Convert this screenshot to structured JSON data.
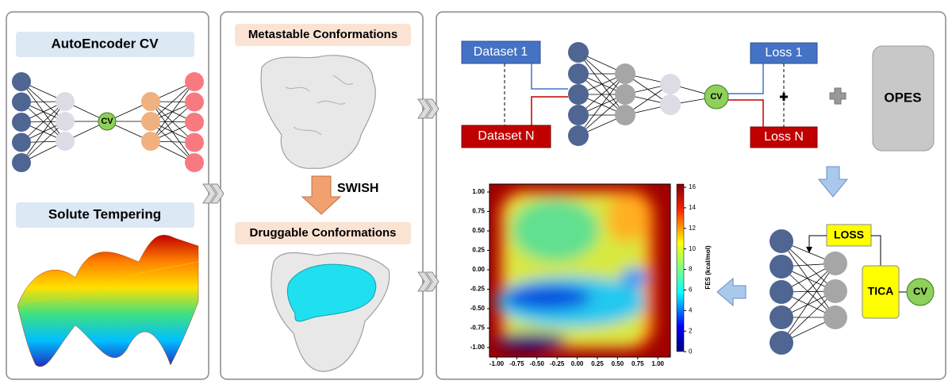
{
  "left": {
    "autoencoder": "AutoEncoder CV",
    "cv": "CV",
    "solute": "Solute Tempering"
  },
  "middle": {
    "metastable": "Metastable Conformations",
    "swish": "SWISH",
    "druggable": "Druggable Conformations"
  },
  "right": {
    "dataset_1": "Dataset 1",
    "dataset_n": "Dataset N",
    "cv": "CV",
    "loss_1": "Loss 1",
    "loss_n": "Loss N",
    "opes": "OPES",
    "loss": "LOSS",
    "tica": "TICA",
    "cv_tica": "CV",
    "fes": {
      "yticks": [
        "1.00",
        "0.75",
        "0.50",
        "0.25",
        "0.00",
        "-0.25",
        "-0.50",
        "-0.75",
        "-1.00"
      ],
      "xticks": [
        "-1.00",
        "-0.75",
        "-0.50",
        "-0.25",
        "0.00",
        "0.25",
        "0.50",
        "0.75",
        "1.00"
      ],
      "colorbar_ticks": [
        "16",
        "14",
        "12",
        "10",
        "8",
        "6",
        "4",
        "2",
        "0"
      ],
      "colorbar_label": "FES (kcal/mol)"
    }
  }
}
